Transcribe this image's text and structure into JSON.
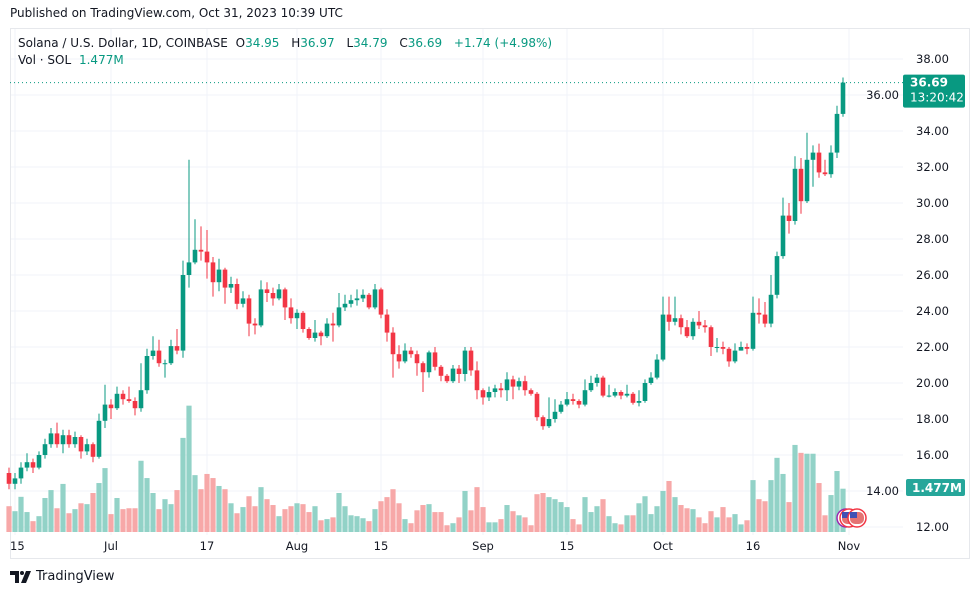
{
  "published": "Published on TradingView.com, Oct 31, 2023 10:39 UTC",
  "legend": {
    "symbol": "Solana / U.S. Dollar, 1D, COINBASE",
    "open_label": "O",
    "open": "34.95",
    "high_label": "H",
    "high": "36.97",
    "low_label": "L",
    "low": "34.79",
    "close_label": "C",
    "close": "36.69",
    "change": "+1.74 (+4.98%)",
    "vol_label": "Vol · SOL",
    "vol_value": "1.477M"
  },
  "price_tag": {
    "price": "36.69",
    "countdown": "13:20:42"
  },
  "volume_tag": "1.477M",
  "footer": {
    "brand": "TradingView"
  },
  "colors": {
    "up": "#089981",
    "down": "#f23645",
    "up_volume": "#92d2c7",
    "down_volume": "#f7a8a8",
    "grid": "#f0f3fa",
    "text": "#131722"
  },
  "icons": {
    "logo": "tradingview-logo-icon",
    "events": "us-flag-event-icon"
  },
  "chart_data": {
    "type": "candlestick",
    "title": "",
    "grid": true,
    "price_axis": {
      "position": "right",
      "ylim": [
        11.5,
        38.5
      ],
      "ticks": [
        "12.00",
        "14.00",
        "16.00",
        "18.00",
        "20.00",
        "22.00",
        "24.00",
        "26.00",
        "28.00",
        "30.00",
        "32.00",
        "34.00",
        "36.00",
        "38.00"
      ]
    },
    "x_ticks": [
      {
        "label": "15",
        "date": "2023-06-15"
      },
      {
        "label": "Jul",
        "date": "2023-07-01"
      },
      {
        "label": "17",
        "date": "2023-07-17"
      },
      {
        "label": "Aug",
        "date": "2023-08-01"
      },
      {
        "label": "15",
        "date": "2023-08-15"
      },
      {
        "label": "Sep",
        "date": "2023-09-01"
      },
      {
        "label": "15",
        "date": "2023-09-15"
      },
      {
        "label": "Oct",
        "date": "2023-10-01"
      },
      {
        "label": "16",
        "date": "2023-10-16"
      },
      {
        "label": "Nov",
        "date": "2023-11-01"
      }
    ],
    "columns": [
      "date",
      "open",
      "high",
      "low",
      "close",
      "volume_M"
    ],
    "candles": [
      [
        "2023-06-14",
        15.0,
        15.3,
        14.1,
        14.4,
        0.88
      ],
      [
        "2023-06-15",
        14.4,
        15.0,
        14.1,
        14.7,
        0.71
      ],
      [
        "2023-06-16",
        14.7,
        15.6,
        14.4,
        15.3,
        1.2
      ],
      [
        "2023-06-17",
        15.3,
        16.1,
        15.1,
        15.6,
        0.68
      ],
      [
        "2023-06-18",
        15.6,
        15.8,
        15.0,
        15.3,
        0.37
      ],
      [
        "2023-06-19",
        15.3,
        16.2,
        15.2,
        16.0,
        0.54
      ],
      [
        "2023-06-20",
        16.0,
        16.9,
        15.8,
        16.6,
        1.16
      ],
      [
        "2023-06-21",
        16.6,
        17.5,
        16.4,
        17.2,
        1.43
      ],
      [
        "2023-06-22",
        17.2,
        17.8,
        16.4,
        16.6,
        0.81
      ],
      [
        "2023-06-23",
        16.6,
        17.4,
        16.1,
        17.1,
        1.64
      ],
      [
        "2023-06-24",
        17.1,
        17.4,
        16.4,
        16.6,
        0.64
      ],
      [
        "2023-06-25",
        16.6,
        17.3,
        16.4,
        17.0,
        0.78
      ],
      [
        "2023-06-26",
        17.0,
        17.1,
        15.8,
        16.2,
        0.98
      ],
      [
        "2023-06-27",
        16.2,
        16.9,
        16.0,
        16.6,
        0.95
      ],
      [
        "2023-06-28",
        16.6,
        16.7,
        15.6,
        15.9,
        1.33
      ],
      [
        "2023-06-29",
        15.9,
        18.3,
        15.8,
        17.9,
        1.67
      ],
      [
        "2023-06-30",
        17.9,
        19.9,
        17.5,
        18.8,
        2.18
      ],
      [
        "2023-07-01",
        18.8,
        19.1,
        18.0,
        18.6,
        0.61
      ],
      [
        "2023-07-02",
        18.6,
        19.8,
        18.5,
        19.4,
        1.16
      ],
      [
        "2023-07-03",
        19.4,
        19.6,
        18.8,
        19.1,
        0.78
      ],
      [
        "2023-07-04",
        19.1,
        19.8,
        18.9,
        19.0,
        0.81
      ],
      [
        "2023-07-05",
        19.0,
        19.2,
        18.2,
        18.6,
        0.81
      ],
      [
        "2023-07-06",
        18.6,
        21.1,
        18.4,
        19.6,
        2.43
      ],
      [
        "2023-07-07",
        19.6,
        21.9,
        19.4,
        21.5,
        1.84
      ],
      [
        "2023-07-08",
        21.5,
        22.6,
        21.3,
        21.8,
        1.33
      ],
      [
        "2023-07-09",
        21.8,
        22.4,
        20.9,
        21.1,
        0.78
      ],
      [
        "2023-07-10",
        21.1,
        21.3,
        20.3,
        21.1,
        1.12
      ],
      [
        "2023-07-11",
        21.1,
        22.4,
        21.0,
        22.05,
        0.95
      ],
      [
        "2023-07-12",
        22.05,
        23.0,
        21.6,
        21.8,
        1.43
      ],
      [
        "2023-07-13",
        21.8,
        26.8,
        21.4,
        26.0,
        3.21
      ],
      [
        "2023-07-14",
        26.0,
        32.4,
        25.3,
        26.7,
        4.31
      ],
      [
        "2023-07-15",
        26.7,
        29.1,
        26.6,
        27.4,
        1.94
      ],
      [
        "2023-07-16",
        27.4,
        28.7,
        26.8,
        27.3,
        1.46
      ],
      [
        "2023-07-17",
        27.3,
        28.5,
        25.8,
        26.7,
        1.98
      ],
      [
        "2023-07-18",
        26.7,
        27.0,
        24.8,
        25.6,
        1.84
      ],
      [
        "2023-07-19",
        25.6,
        26.9,
        25.1,
        26.3,
        1.57
      ],
      [
        "2023-07-20",
        26.3,
        26.4,
        24.4,
        25.3,
        1.46
      ],
      [
        "2023-07-21",
        25.3,
        25.9,
        25.0,
        25.5,
        0.98
      ],
      [
        "2023-07-22",
        25.5,
        25.8,
        24.1,
        24.4,
        0.64
      ],
      [
        "2023-07-23",
        24.4,
        25.1,
        24.2,
        24.7,
        0.85
      ],
      [
        "2023-07-24",
        24.7,
        24.9,
        22.6,
        23.3,
        1.22
      ],
      [
        "2023-07-25",
        23.3,
        23.6,
        22.7,
        23.2,
        0.88
      ],
      [
        "2023-07-26",
        23.2,
        25.7,
        23.1,
        25.2,
        1.53
      ],
      [
        "2023-07-27",
        25.2,
        25.6,
        24.5,
        25.0,
        1.12
      ],
      [
        "2023-07-28",
        25.0,
        25.3,
        24.3,
        24.7,
        0.92
      ],
      [
        "2023-07-29",
        24.7,
        25.5,
        24.6,
        25.2,
        0.54
      ],
      [
        "2023-07-30",
        25.2,
        25.3,
        23.5,
        24.2,
        0.78
      ],
      [
        "2023-07-31",
        24.2,
        24.7,
        23.3,
        23.6,
        0.88
      ],
      [
        "2023-08-01",
        23.6,
        24.1,
        23.0,
        23.9,
        0.98
      ],
      [
        "2023-08-02",
        23.9,
        24.0,
        22.8,
        23.0,
        0.95
      ],
      [
        "2023-08-03",
        23.0,
        23.1,
        22.4,
        22.5,
        0.68
      ],
      [
        "2023-08-04",
        22.5,
        23.5,
        22.3,
        22.8,
        0.88
      ],
      [
        "2023-08-05",
        22.8,
        22.9,
        22.1,
        22.6,
        0.4
      ],
      [
        "2023-08-06",
        22.6,
        23.6,
        22.5,
        23.3,
        0.44
      ],
      [
        "2023-08-07",
        23.3,
        23.9,
        22.3,
        23.2,
        0.5
      ],
      [
        "2023-08-08",
        23.2,
        25.0,
        23.1,
        24.2,
        1.33
      ],
      [
        "2023-08-09",
        24.2,
        24.9,
        24.0,
        24.4,
        0.88
      ],
      [
        "2023-08-10",
        24.4,
        24.9,
        24.2,
        24.6,
        0.57
      ],
      [
        "2023-08-11",
        24.6,
        25.2,
        24.3,
        24.7,
        0.54
      ],
      [
        "2023-08-12",
        24.7,
        25.2,
        24.5,
        24.9,
        0.47
      ],
      [
        "2023-08-13",
        24.9,
        25.0,
        24.1,
        24.2,
        0.37
      ],
      [
        "2023-08-14",
        24.2,
        25.5,
        24.1,
        25.2,
        0.78
      ],
      [
        "2023-08-15",
        25.2,
        25.3,
        23.6,
        23.8,
        1.05
      ],
      [
        "2023-08-16",
        23.8,
        24.1,
        22.3,
        22.8,
        1.19
      ],
      [
        "2023-08-17",
        22.8,
        23.1,
        20.3,
        21.6,
        1.46
      ],
      [
        "2023-08-18",
        21.6,
        22.1,
        20.8,
        21.2,
        0.98
      ],
      [
        "2023-08-19",
        21.2,
        22.2,
        21.1,
        21.8,
        0.44
      ],
      [
        "2023-08-20",
        21.8,
        22.0,
        21.4,
        21.6,
        0.3
      ],
      [
        "2023-08-21",
        21.6,
        21.8,
        20.4,
        21.1,
        0.74
      ],
      [
        "2023-08-22",
        21.1,
        21.2,
        19.5,
        20.6,
        0.92
      ],
      [
        "2023-08-23",
        20.6,
        21.8,
        20.3,
        21.7,
        0.95
      ],
      [
        "2023-08-24",
        21.7,
        22.0,
        20.7,
        20.9,
        0.68
      ],
      [
        "2023-08-25",
        20.9,
        21.0,
        20.1,
        20.4,
        0.68
      ],
      [
        "2023-08-26",
        20.4,
        20.5,
        20.0,
        20.1,
        0.23
      ],
      [
        "2023-08-27",
        20.1,
        21.0,
        20.0,
        20.8,
        0.3
      ],
      [
        "2023-08-28",
        20.8,
        21.0,
        20.0,
        20.5,
        0.5
      ],
      [
        "2023-08-29",
        20.5,
        22.0,
        20.1,
        21.8,
        1.4
      ],
      [
        "2023-08-30",
        21.8,
        22.0,
        20.4,
        20.7,
        0.74
      ],
      [
        "2023-08-31",
        20.7,
        21.2,
        19.1,
        19.6,
        1.53
      ],
      [
        "2023-09-01",
        19.6,
        19.7,
        18.8,
        19.2,
        0.85
      ],
      [
        "2023-09-02",
        19.2,
        19.8,
        19.0,
        19.5,
        0.33
      ],
      [
        "2023-09-03",
        19.5,
        19.9,
        19.2,
        19.7,
        0.33
      ],
      [
        "2023-09-04",
        19.7,
        20.0,
        19.2,
        19.6,
        0.44
      ],
      [
        "2023-09-05",
        19.6,
        20.6,
        19.0,
        20.2,
        0.92
      ],
      [
        "2023-09-06",
        20.2,
        20.4,
        19.1,
        19.8,
        0.71
      ],
      [
        "2023-09-07",
        19.8,
        20.3,
        19.6,
        20.1,
        0.57
      ],
      [
        "2023-09-08",
        20.1,
        20.4,
        19.3,
        19.6,
        0.5
      ],
      [
        "2023-09-09",
        19.6,
        19.7,
        19.3,
        19.4,
        0.23
      ],
      [
        "2023-09-10",
        19.4,
        19.5,
        17.9,
        18.1,
        1.29
      ],
      [
        "2023-09-11",
        18.1,
        18.2,
        17.4,
        17.6,
        1.33
      ],
      [
        "2023-09-12",
        17.6,
        19.2,
        17.5,
        18.0,
        1.19
      ],
      [
        "2023-09-13",
        18.0,
        19.1,
        17.8,
        18.4,
        1.12
      ],
      [
        "2023-09-14",
        18.4,
        19.0,
        18.3,
        18.8,
        1.02
      ],
      [
        "2023-09-15",
        18.8,
        19.5,
        18.7,
        19.1,
        0.85
      ],
      [
        "2023-09-16",
        19.1,
        19.4,
        18.8,
        19.0,
        0.44
      ],
      [
        "2023-09-17",
        19.0,
        19.1,
        18.6,
        18.8,
        0.26
      ],
      [
        "2023-09-18",
        18.8,
        20.2,
        18.7,
        19.6,
        1.19
      ],
      [
        "2023-09-19",
        19.6,
        20.4,
        19.5,
        20.0,
        0.68
      ],
      [
        "2023-09-20",
        20.0,
        20.5,
        19.8,
        20.3,
        0.88
      ],
      [
        "2023-09-21",
        20.3,
        20.4,
        19.2,
        19.3,
        1.12
      ],
      [
        "2023-09-22",
        19.3,
        19.9,
        19.2,
        19.3,
        0.54
      ],
      [
        "2023-09-23",
        19.3,
        19.7,
        19.2,
        19.5,
        0.3
      ],
      [
        "2023-09-24",
        19.5,
        19.6,
        19.1,
        19.3,
        0.26
      ],
      [
        "2023-09-25",
        19.3,
        19.9,
        19.2,
        19.4,
        0.57
      ],
      [
        "2023-09-26",
        19.4,
        19.5,
        18.8,
        18.9,
        0.57
      ],
      [
        "2023-09-27",
        18.9,
        19.6,
        18.7,
        19.0,
        0.98
      ],
      [
        "2023-09-28",
        19.0,
        20.2,
        18.9,
        20.0,
        1.22
      ],
      [
        "2023-09-29",
        20.0,
        20.6,
        19.9,
        20.3,
        0.61
      ],
      [
        "2023-09-30",
        20.3,
        21.6,
        20.2,
        21.3,
        0.88
      ],
      [
        "2023-10-01",
        21.3,
        24.8,
        21.2,
        23.8,
        1.4
      ],
      [
        "2023-10-02",
        23.8,
        24.8,
        22.9,
        23.4,
        1.74
      ],
      [
        "2023-10-03",
        23.4,
        24.8,
        23.2,
        23.6,
        1.19
      ],
      [
        "2023-10-04",
        23.6,
        23.8,
        22.7,
        23.1,
        0.92
      ],
      [
        "2023-10-05",
        23.1,
        23.5,
        22.5,
        22.6,
        0.81
      ],
      [
        "2023-10-06",
        22.6,
        23.6,
        22.4,
        23.4,
        0.78
      ],
      [
        "2023-10-07",
        23.4,
        24.0,
        23.0,
        23.2,
        0.5
      ],
      [
        "2023-10-08",
        23.2,
        23.5,
        22.8,
        23.1,
        0.3
      ],
      [
        "2023-10-09",
        23.1,
        23.2,
        21.5,
        22.0,
        0.71
      ],
      [
        "2023-10-10",
        22.0,
        22.5,
        21.7,
        22.0,
        0.5
      ],
      [
        "2023-10-11",
        22.0,
        22.3,
        21.6,
        21.9,
        0.85
      ],
      [
        "2023-10-12",
        21.9,
        22.0,
        20.9,
        21.2,
        0.5
      ],
      [
        "2023-10-13",
        21.2,
        22.2,
        21.1,
        21.8,
        0.61
      ],
      [
        "2023-10-14",
        21.8,
        22.3,
        21.8,
        22.0,
        0.26
      ],
      [
        "2023-10-15",
        22.0,
        22.2,
        21.6,
        21.9,
        0.4
      ],
      [
        "2023-10-16",
        21.9,
        24.8,
        21.8,
        23.9,
        1.77
      ],
      [
        "2023-10-17",
        23.9,
        24.7,
        23.3,
        23.8,
        1.12
      ],
      [
        "2023-10-18",
        23.8,
        24.5,
        23.1,
        23.3,
        1.05
      ],
      [
        "2023-10-19",
        23.3,
        26.0,
        23.1,
        24.9,
        1.77
      ],
      [
        "2023-10-20",
        24.9,
        27.3,
        24.7,
        27.05,
        2.53
      ],
      [
        "2023-10-21",
        27.05,
        30.3,
        26.9,
        29.3,
        1.98
      ],
      [
        "2023-10-22",
        29.3,
        30.0,
        28.3,
        29.0,
        1.02
      ],
      [
        "2023-10-23",
        29.0,
        32.6,
        28.8,
        31.9,
        2.97
      ],
      [
        "2023-10-24",
        31.9,
        32.5,
        29.4,
        30.1,
        2.7
      ],
      [
        "2023-10-25",
        30.1,
        33.9,
        30.0,
        32.4,
        2.67
      ],
      [
        "2023-10-26",
        32.4,
        33.2,
        30.9,
        32.8,
        2.67
      ],
      [
        "2023-10-27",
        32.8,
        33.3,
        31.4,
        31.7,
        1.67
      ],
      [
        "2023-10-28",
        31.7,
        32.4,
        31.5,
        31.6,
        0.57
      ],
      [
        "2023-10-29",
        31.6,
        33.2,
        31.4,
        32.8,
        1.26
      ],
      [
        "2023-10-30",
        32.8,
        35.4,
        32.5,
        34.95,
        2.08
      ],
      [
        "2023-10-31",
        34.95,
        36.97,
        34.79,
        36.69,
        1.477
      ]
    ]
  }
}
